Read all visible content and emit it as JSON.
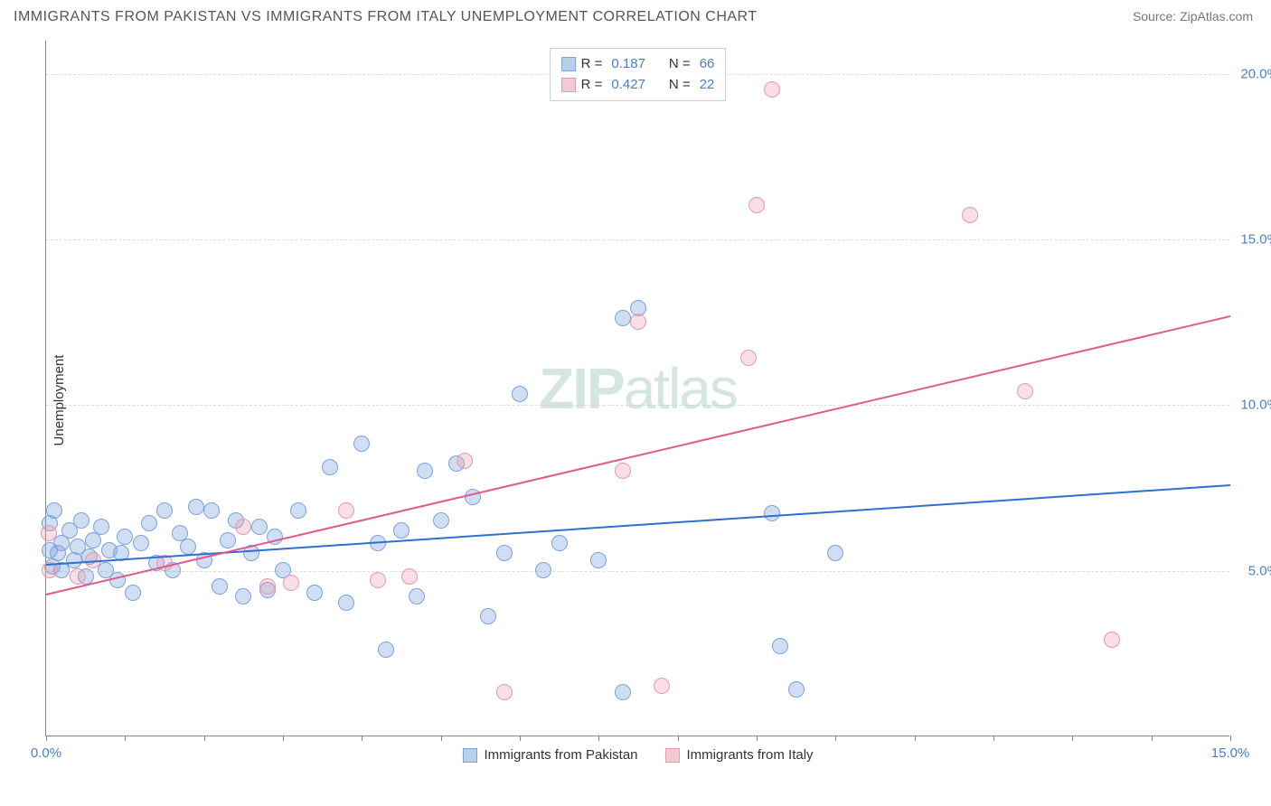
{
  "title": "IMMIGRANTS FROM PAKISTAN VS IMMIGRANTS FROM ITALY UNEMPLOYMENT CORRELATION CHART",
  "source_label": "Source: ",
  "source_name": "ZipAtlas.com",
  "ylabel": "Unemployment",
  "watermark_bold": "ZIP",
  "watermark_light": "atlas",
  "chart": {
    "type": "scatter",
    "xlim": [
      0,
      15
    ],
    "ylim": [
      0,
      21
    ],
    "xticks": [
      0,
      1,
      2,
      3,
      4,
      5,
      6,
      7,
      8,
      9,
      10,
      11,
      12,
      13,
      14,
      15
    ],
    "xtick_labels": {
      "0": "0.0%",
      "15": "15.0%"
    },
    "yticks": [
      5,
      10,
      15,
      20
    ],
    "ytick_labels": {
      "5": "5.0%",
      "10": "10.0%",
      "15": "15.0%",
      "20": "20.0%"
    },
    "background_color": "#ffffff",
    "grid_color": "#dddddd",
    "axis_color": "#888888",
    "tick_label_color": "#4a7ec9"
  },
  "series": [
    {
      "name": "Immigrants from Pakistan",
      "color_fill": "rgba(120,160,220,0.35)",
      "color_stroke": "#7aa3d9",
      "swatch_fill": "#b8cfec",
      "swatch_stroke": "#7aa3d9",
      "marker_radius": 9,
      "R": "0.187",
      "N": "66",
      "trend": {
        "x1": 0,
        "y1": 5.2,
        "x2": 15,
        "y2": 7.6,
        "color": "#2e6fd1",
        "width": 2
      },
      "points": [
        [
          0.05,
          6.4
        ],
        [
          0.05,
          5.6
        ],
        [
          0.08,
          5.1
        ],
        [
          0.1,
          6.8
        ],
        [
          0.15,
          5.5
        ],
        [
          0.2,
          5.8
        ],
        [
          0.2,
          5.0
        ],
        [
          0.3,
          6.2
        ],
        [
          0.35,
          5.3
        ],
        [
          0.4,
          5.7
        ],
        [
          0.45,
          6.5
        ],
        [
          0.5,
          4.8
        ],
        [
          0.55,
          5.4
        ],
        [
          0.6,
          5.9
        ],
        [
          0.7,
          6.3
        ],
        [
          0.75,
          5.0
        ],
        [
          0.8,
          5.6
        ],
        [
          0.9,
          4.7
        ],
        [
          0.95,
          5.5
        ],
        [
          1.0,
          6.0
        ],
        [
          1.1,
          4.3
        ],
        [
          1.2,
          5.8
        ],
        [
          1.3,
          6.4
        ],
        [
          1.4,
          5.2
        ],
        [
          1.5,
          6.8
        ],
        [
          1.6,
          5.0
        ],
        [
          1.7,
          6.1
        ],
        [
          1.8,
          5.7
        ],
        [
          1.9,
          6.9
        ],
        [
          2.0,
          5.3
        ],
        [
          2.1,
          6.8
        ],
        [
          2.2,
          4.5
        ],
        [
          2.3,
          5.9
        ],
        [
          2.4,
          6.5
        ],
        [
          2.5,
          4.2
        ],
        [
          2.6,
          5.5
        ],
        [
          2.7,
          6.3
        ],
        [
          2.8,
          4.4
        ],
        [
          2.9,
          6.0
        ],
        [
          3.0,
          5.0
        ],
        [
          3.2,
          6.8
        ],
        [
          3.4,
          4.3
        ],
        [
          3.6,
          8.1
        ],
        [
          3.8,
          4.0
        ],
        [
          4.0,
          8.8
        ],
        [
          4.2,
          5.8
        ],
        [
          4.3,
          2.6
        ],
        [
          4.5,
          6.2
        ],
        [
          4.7,
          4.2
        ],
        [
          4.8,
          8.0
        ],
        [
          5.0,
          6.5
        ],
        [
          5.2,
          8.2
        ],
        [
          5.4,
          7.2
        ],
        [
          5.6,
          3.6
        ],
        [
          5.8,
          5.5
        ],
        [
          6.0,
          10.3
        ],
        [
          6.3,
          5.0
        ],
        [
          6.5,
          5.8
        ],
        [
          7.0,
          5.3
        ],
        [
          7.3,
          12.6
        ],
        [
          7.3,
          1.3
        ],
        [
          7.5,
          12.9
        ],
        [
          9.2,
          6.7
        ],
        [
          9.3,
          2.7
        ],
        [
          9.5,
          1.4
        ],
        [
          10.0,
          5.5
        ]
      ]
    },
    {
      "name": "Immigrants from Italy",
      "color_fill": "rgba(235,150,170,0.3)",
      "color_stroke": "#e698ab",
      "swatch_fill": "#f3c9d3",
      "swatch_stroke": "#e698ab",
      "marker_radius": 9,
      "R": "0.427",
      "N": "22",
      "trend": {
        "x1": 0,
        "y1": 4.3,
        "x2": 15,
        "y2": 12.7,
        "color": "#e05a8a",
        "width": 2
      },
      "points": [
        [
          0.03,
          6.1
        ],
        [
          0.05,
          5.0
        ],
        [
          0.4,
          4.8
        ],
        [
          0.6,
          5.3
        ],
        [
          1.5,
          5.2
        ],
        [
          2.5,
          6.3
        ],
        [
          2.8,
          4.5
        ],
        [
          3.1,
          4.6
        ],
        [
          3.8,
          6.8
        ],
        [
          4.2,
          4.7
        ],
        [
          4.6,
          4.8
        ],
        [
          5.3,
          8.3
        ],
        [
          5.8,
          1.3
        ],
        [
          7.3,
          8.0
        ],
        [
          7.5,
          12.5
        ],
        [
          7.8,
          1.5
        ],
        [
          8.9,
          11.4
        ],
        [
          9.0,
          16.0
        ],
        [
          9.2,
          19.5
        ],
        [
          11.7,
          15.7
        ],
        [
          12.4,
          10.4
        ],
        [
          13.5,
          2.9
        ]
      ]
    }
  ],
  "legend_top": {
    "R_label": "R =",
    "N_label": "N ="
  }
}
